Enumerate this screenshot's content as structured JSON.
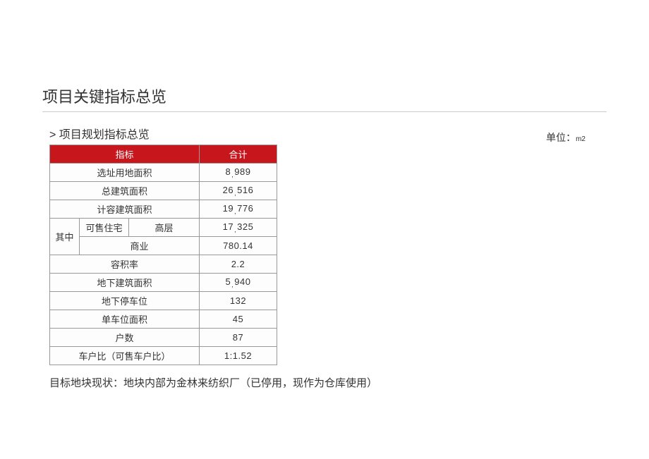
{
  "title": "项目关键指标总览",
  "subtitle": "> 项目规划指标总览",
  "unit_label_prefix": "单位：",
  "unit_label_unit": "m2",
  "header_indicator": "指标",
  "header_total": "合计",
  "rows": {
    "site_area_label": "选址用地面积",
    "site_area_value": "8,989",
    "total_build_label": "总建筑面积",
    "total_build_value": "26,516",
    "far_build_label": "计容建筑面积",
    "far_build_value": "19,776",
    "sub_label": "其中",
    "sellable_res_label": "可售住宅",
    "highrise_label": "高层",
    "highrise_value": "17,325",
    "commercial_label": "商业",
    "commercial_value": "780.14",
    "far_label": "容积率",
    "far_value": "2.2",
    "underground_label": "地下建筑面积",
    "underground_value": "5,940",
    "ug_parking_label": "地下停车位",
    "ug_parking_value": "132",
    "per_space_label": "单车位面积",
    "per_space_value": "45",
    "households_label": "户数",
    "households_value": "87",
    "ratio_label": "车户比（可售车户比）",
    "ratio_value": "1:1.52"
  },
  "footnote": "目标地块现状：地块内部为金林来纺织厂（已停用，现作为仓库使用）",
  "colors": {
    "header_bg": "#c8161d",
    "header_fg": "#ffffff",
    "border": "#999999",
    "text": "#333333"
  }
}
